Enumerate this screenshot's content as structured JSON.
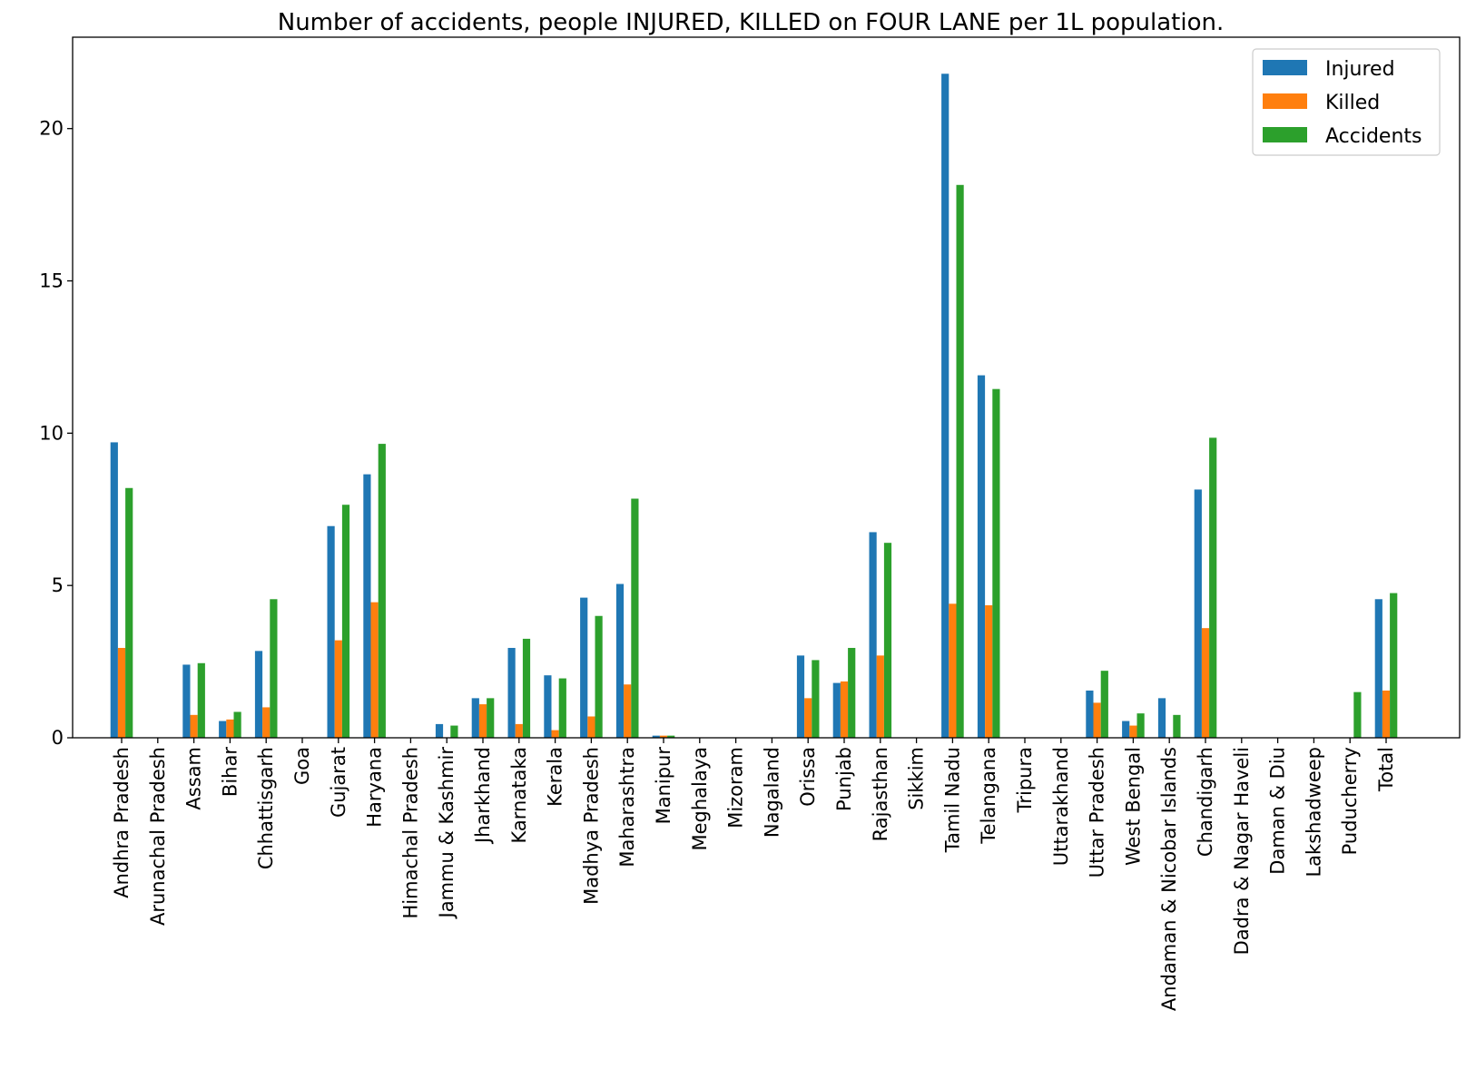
{
  "chart_data": {
    "type": "bar",
    "title": "Number of accidents, people INJURED, KILLED on FOUR LANE per 1L population.",
    "xlabel": "",
    "ylabel": "",
    "ylim": [
      0,
      23
    ],
    "yticks": [
      0,
      5,
      10,
      15,
      20
    ],
    "grid": false,
    "legend_position": "top-right",
    "categories": [
      "Andhra Pradesh",
      "Arunachal Pradesh",
      "Assam",
      "Bihar",
      "Chhattisgarh",
      "Goa",
      "Gujarat",
      "Haryana",
      "Himachal Pradesh",
      "Jammu & Kashmir",
      "Jharkhand",
      "Karnataka",
      "Kerala",
      "Madhya Pradesh",
      "Maharashtra",
      "Manipur",
      "Meghalaya",
      "Mizoram",
      "Nagaland",
      "Orissa",
      "Punjab",
      "Rajasthan",
      "Sikkim",
      "Tamil Nadu",
      "Telangana",
      "Tripura",
      "Uttarakhand",
      "Uttar Pradesh",
      "West Bengal",
      "Andaman & Nicobar Islands",
      "Chandigarh",
      "Dadra & Nagar Haveli",
      "Daman & Diu",
      "Lakshadweep",
      "Puducherry",
      "Total"
    ],
    "series": [
      {
        "name": "Injured",
        "color": "#1f77b4",
        "values": [
          9.7,
          0,
          2.4,
          0.55,
          2.85,
          0,
          6.95,
          8.65,
          0,
          0.45,
          1.3,
          2.95,
          2.05,
          4.6,
          5.05,
          0.07,
          0,
          0,
          0,
          2.7,
          1.8,
          6.75,
          0,
          21.8,
          11.9,
          0,
          0,
          1.55,
          0.55,
          1.3,
          8.15,
          0,
          0,
          0,
          0,
          4.55
        ]
      },
      {
        "name": "Killed",
        "color": "#ff7f0e",
        "values": [
          2.95,
          0,
          0.75,
          0.6,
          1.0,
          0,
          3.2,
          4.45,
          0,
          0,
          1.1,
          0.45,
          0.25,
          0.7,
          1.75,
          0.07,
          0,
          0,
          0,
          1.3,
          1.85,
          2.7,
          0,
          4.4,
          4.35,
          0,
          0,
          1.15,
          0.4,
          0,
          3.6,
          0,
          0,
          0,
          0,
          1.55
        ]
      },
      {
        "name": "Accidents",
        "color": "#2ca02c",
        "values": [
          8.2,
          0,
          2.45,
          0.85,
          4.55,
          0,
          7.65,
          9.65,
          0,
          0.4,
          1.3,
          3.25,
          1.95,
          4.0,
          7.85,
          0.07,
          0,
          0,
          0,
          2.55,
          2.95,
          6.4,
          0,
          18.15,
          11.45,
          0,
          0,
          2.2,
          0.8,
          0.75,
          9.85,
          0,
          0,
          0,
          1.5,
          4.75
        ]
      }
    ]
  }
}
